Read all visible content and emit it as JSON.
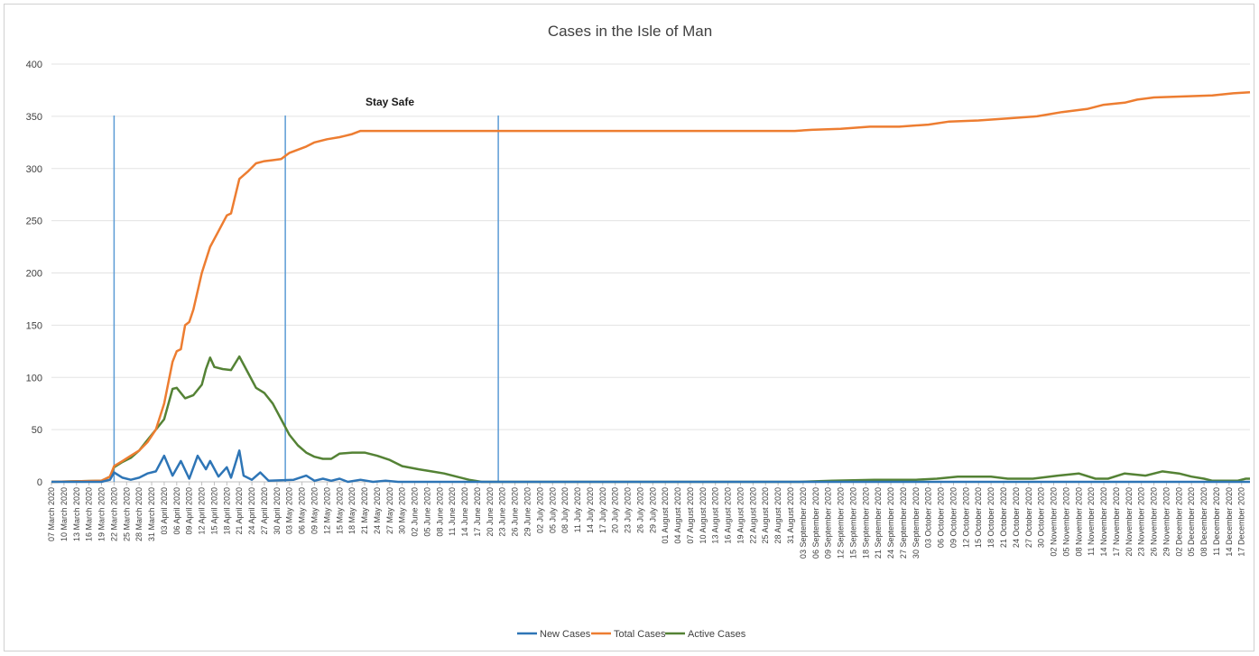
{
  "chart_data": {
    "type": "line",
    "title": "Cases in the Isle of Man",
    "annotation": "Stay Safe",
    "xlabel": "",
    "ylabel": "",
    "ylim": [
      0,
      400
    ],
    "yticks": [
      0,
      50,
      100,
      150,
      200,
      250,
      300,
      350,
      400
    ],
    "grid": true,
    "legend_position": "bottom",
    "x_start": "2020-03-07",
    "x_end": "2020-12-19",
    "xtick_labels": [
      "07 March 2020",
      "10 March 2020",
      "13 March 2020",
      "16 March 2020",
      "19 March 2020",
      "22 March 2020",
      "25 March 2020",
      "28 March 2020",
      "31 March 2020",
      "03 April 2020",
      "06 April 2020",
      "09 April 2020",
      "12 April 2020",
      "15 April 2020",
      "18 April 2020",
      "21 April 2020",
      "24 April 2020",
      "27 April 2020",
      "30 April 2020",
      "03 May 2020",
      "06 May 2020",
      "09 May 2020",
      "12 May 2020",
      "15 May 2020",
      "18 May 2020",
      "21 May 2020",
      "24 May 2020",
      "27 May 2020",
      "30 May 2020",
      "02 June 2020",
      "05 June 2020",
      "08 June 2020",
      "11 June 2020",
      "14 June 2020",
      "17 June 2020",
      "20 June 2020",
      "23 June 2020",
      "26 June 2020",
      "29 June 2020",
      "02 July 2020",
      "05 July 2020",
      "08 July 2020",
      "11 July 2020",
      "14 July 2020",
      "17 July 2020",
      "20 July 2020",
      "23 July 2020",
      "26 July 2020",
      "29 July 2020",
      "01 August 2020",
      "04 August 2020",
      "07 August 2020",
      "10 August 2020",
      "13 August 2020",
      "16 August 2020",
      "19 August 2020",
      "22 August 2020",
      "25 August 2020",
      "28 August 2020",
      "31 August 2020",
      "03 September 2020",
      "06 September 2020",
      "09 September 2020",
      "12 September 2020",
      "15 September 2020",
      "18 September 2020",
      "21 September 2020",
      "24 September 2020",
      "27 September 2020",
      "30 September 2020",
      "03 October 2020",
      "06 October 2020",
      "09 October 2020",
      "12 October 2020",
      "15 October 2020",
      "18 October 2020",
      "21 October 2020",
      "24 October 2020",
      "27 October 2020",
      "30 October 2020",
      "02 November 2020",
      "05 November 2020",
      "08 November 2020",
      "11 November 2020",
      "14 November 2020",
      "17 November 2020",
      "20 November 2020",
      "23 November 2020",
      "26 November 2020",
      "29 November 2020",
      "02 December 2020",
      "05 December 2020",
      "08 December 2020",
      "11 December 2020",
      "14 December 2020",
      "17 December 2020"
    ],
    "vertical_lines": [
      "2020-03-22",
      "2020-05-02",
      "2020-06-22"
    ],
    "series": [
      {
        "name": "New Cases",
        "color": "#2e75b6",
        "points": [
          [
            "2020-03-07",
            0
          ],
          [
            "2020-03-19",
            0
          ],
          [
            "2020-03-20",
            1
          ],
          [
            "2020-03-21",
            2
          ],
          [
            "2020-03-22",
            9
          ],
          [
            "2020-03-24",
            4
          ],
          [
            "2020-03-26",
            2
          ],
          [
            "2020-03-28",
            4
          ],
          [
            "2020-03-30",
            8
          ],
          [
            "2020-04-01",
            10
          ],
          [
            "2020-04-03",
            25
          ],
          [
            "2020-04-05",
            6
          ],
          [
            "2020-04-07",
            20
          ],
          [
            "2020-04-09",
            3
          ],
          [
            "2020-04-11",
            25
          ],
          [
            "2020-04-13",
            12
          ],
          [
            "2020-04-14",
            20
          ],
          [
            "2020-04-16",
            5
          ],
          [
            "2020-04-18",
            14
          ],
          [
            "2020-04-19",
            4
          ],
          [
            "2020-04-21",
            30
          ],
          [
            "2020-04-22",
            6
          ],
          [
            "2020-04-24",
            2
          ],
          [
            "2020-04-26",
            9
          ],
          [
            "2020-04-28",
            1
          ],
          [
            "2020-05-04",
            2
          ],
          [
            "2020-05-07",
            6
          ],
          [
            "2020-05-09",
            1
          ],
          [
            "2020-05-11",
            3
          ],
          [
            "2020-05-13",
            1
          ],
          [
            "2020-05-15",
            3
          ],
          [
            "2020-05-17",
            0
          ],
          [
            "2020-05-20",
            2
          ],
          [
            "2020-05-23",
            0
          ],
          [
            "2020-05-26",
            1
          ],
          [
            "2020-05-29",
            0
          ],
          [
            "2020-12-19",
            0
          ]
        ]
      },
      {
        "name": "Total Cases",
        "color": "#ed7d31",
        "points": [
          [
            "2020-03-07",
            0
          ],
          [
            "2020-03-19",
            1
          ],
          [
            "2020-03-20",
            3
          ],
          [
            "2020-03-21",
            5
          ],
          [
            "2020-03-22",
            15
          ],
          [
            "2020-03-24",
            20
          ],
          [
            "2020-03-26",
            25
          ],
          [
            "2020-03-28",
            30
          ],
          [
            "2020-03-30",
            38
          ],
          [
            "2020-04-01",
            50
          ],
          [
            "2020-04-03",
            75
          ],
          [
            "2020-04-05",
            115
          ],
          [
            "2020-04-06",
            125
          ],
          [
            "2020-04-07",
            127
          ],
          [
            "2020-04-08",
            150
          ],
          [
            "2020-04-09",
            153
          ],
          [
            "2020-04-10",
            165
          ],
          [
            "2020-04-12",
            200
          ],
          [
            "2020-04-14",
            225
          ],
          [
            "2020-04-16",
            240
          ],
          [
            "2020-04-18",
            255
          ],
          [
            "2020-04-19",
            257
          ],
          [
            "2020-04-21",
            290
          ],
          [
            "2020-04-23",
            297
          ],
          [
            "2020-04-25",
            305
          ],
          [
            "2020-04-27",
            307
          ],
          [
            "2020-04-29",
            308
          ],
          [
            "2020-05-01",
            309
          ],
          [
            "2020-05-03",
            315
          ],
          [
            "2020-05-05",
            318
          ],
          [
            "2020-05-07",
            321
          ],
          [
            "2020-05-09",
            325
          ],
          [
            "2020-05-12",
            328
          ],
          [
            "2020-05-15",
            330
          ],
          [
            "2020-05-18",
            333
          ],
          [
            "2020-05-20",
            336
          ],
          [
            "2020-09-01",
            336
          ],
          [
            "2020-09-05",
            337
          ],
          [
            "2020-09-12",
            338
          ],
          [
            "2020-09-19",
            340
          ],
          [
            "2020-09-26",
            340
          ],
          [
            "2020-10-03",
            342
          ],
          [
            "2020-10-08",
            345
          ],
          [
            "2020-10-15",
            346
          ],
          [
            "2020-10-22",
            348
          ],
          [
            "2020-10-29",
            350
          ],
          [
            "2020-11-04",
            354
          ],
          [
            "2020-11-10",
            357
          ],
          [
            "2020-11-14",
            361
          ],
          [
            "2020-11-19",
            363
          ],
          [
            "2020-11-22",
            366
          ],
          [
            "2020-11-26",
            368
          ],
          [
            "2020-12-03",
            369
          ],
          [
            "2020-12-10",
            370
          ],
          [
            "2020-12-15",
            372
          ],
          [
            "2020-12-19",
            373
          ]
        ]
      },
      {
        "name": "Active Cases",
        "color": "#548235",
        "points": [
          [
            "2020-03-07",
            0
          ],
          [
            "2020-03-19",
            1
          ],
          [
            "2020-03-20",
            3
          ],
          [
            "2020-03-21",
            5
          ],
          [
            "2020-03-22",
            14
          ],
          [
            "2020-03-24",
            19
          ],
          [
            "2020-03-26",
            23
          ],
          [
            "2020-03-28",
            30
          ],
          [
            "2020-03-30",
            40
          ],
          [
            "2020-04-01",
            50
          ],
          [
            "2020-04-03",
            60
          ],
          [
            "2020-04-05",
            89
          ],
          [
            "2020-04-06",
            90
          ],
          [
            "2020-04-08",
            80
          ],
          [
            "2020-04-10",
            83
          ],
          [
            "2020-04-12",
            93
          ],
          [
            "2020-04-13",
            108
          ],
          [
            "2020-04-14",
            119
          ],
          [
            "2020-04-15",
            110
          ],
          [
            "2020-04-17",
            108
          ],
          [
            "2020-04-19",
            107
          ],
          [
            "2020-04-21",
            120
          ],
          [
            "2020-04-23",
            105
          ],
          [
            "2020-04-25",
            90
          ],
          [
            "2020-04-27",
            85
          ],
          [
            "2020-04-29",
            75
          ],
          [
            "2020-05-01",
            60
          ],
          [
            "2020-05-03",
            45
          ],
          [
            "2020-05-05",
            35
          ],
          [
            "2020-05-07",
            28
          ],
          [
            "2020-05-09",
            24
          ],
          [
            "2020-05-11",
            22
          ],
          [
            "2020-05-13",
            22
          ],
          [
            "2020-05-15",
            27
          ],
          [
            "2020-05-18",
            28
          ],
          [
            "2020-05-21",
            28
          ],
          [
            "2020-05-24",
            25
          ],
          [
            "2020-05-27",
            21
          ],
          [
            "2020-05-30",
            15
          ],
          [
            "2020-06-03",
            12
          ],
          [
            "2020-06-06",
            10
          ],
          [
            "2020-06-09",
            8
          ],
          [
            "2020-06-12",
            5
          ],
          [
            "2020-06-15",
            2
          ],
          [
            "2020-06-18",
            0
          ],
          [
            "2020-09-02",
            0
          ],
          [
            "2020-09-10",
            1
          ],
          [
            "2020-09-20",
            2
          ],
          [
            "2020-09-30",
            2
          ],
          [
            "2020-10-05",
            3
          ],
          [
            "2020-10-10",
            5
          ],
          [
            "2020-10-18",
            5
          ],
          [
            "2020-10-22",
            3
          ],
          [
            "2020-10-28",
            3
          ],
          [
            "2020-11-03",
            6
          ],
          [
            "2020-11-08",
            8
          ],
          [
            "2020-11-12",
            3
          ],
          [
            "2020-11-15",
            3
          ],
          [
            "2020-11-19",
            8
          ],
          [
            "2020-11-24",
            6
          ],
          [
            "2020-11-28",
            10
          ],
          [
            "2020-12-02",
            8
          ],
          [
            "2020-12-05",
            5
          ],
          [
            "2020-12-08",
            3
          ],
          [
            "2020-12-10",
            1
          ],
          [
            "2020-12-16",
            1
          ],
          [
            "2020-12-18",
            3
          ],
          [
            "2020-12-19",
            3
          ]
        ]
      }
    ]
  }
}
